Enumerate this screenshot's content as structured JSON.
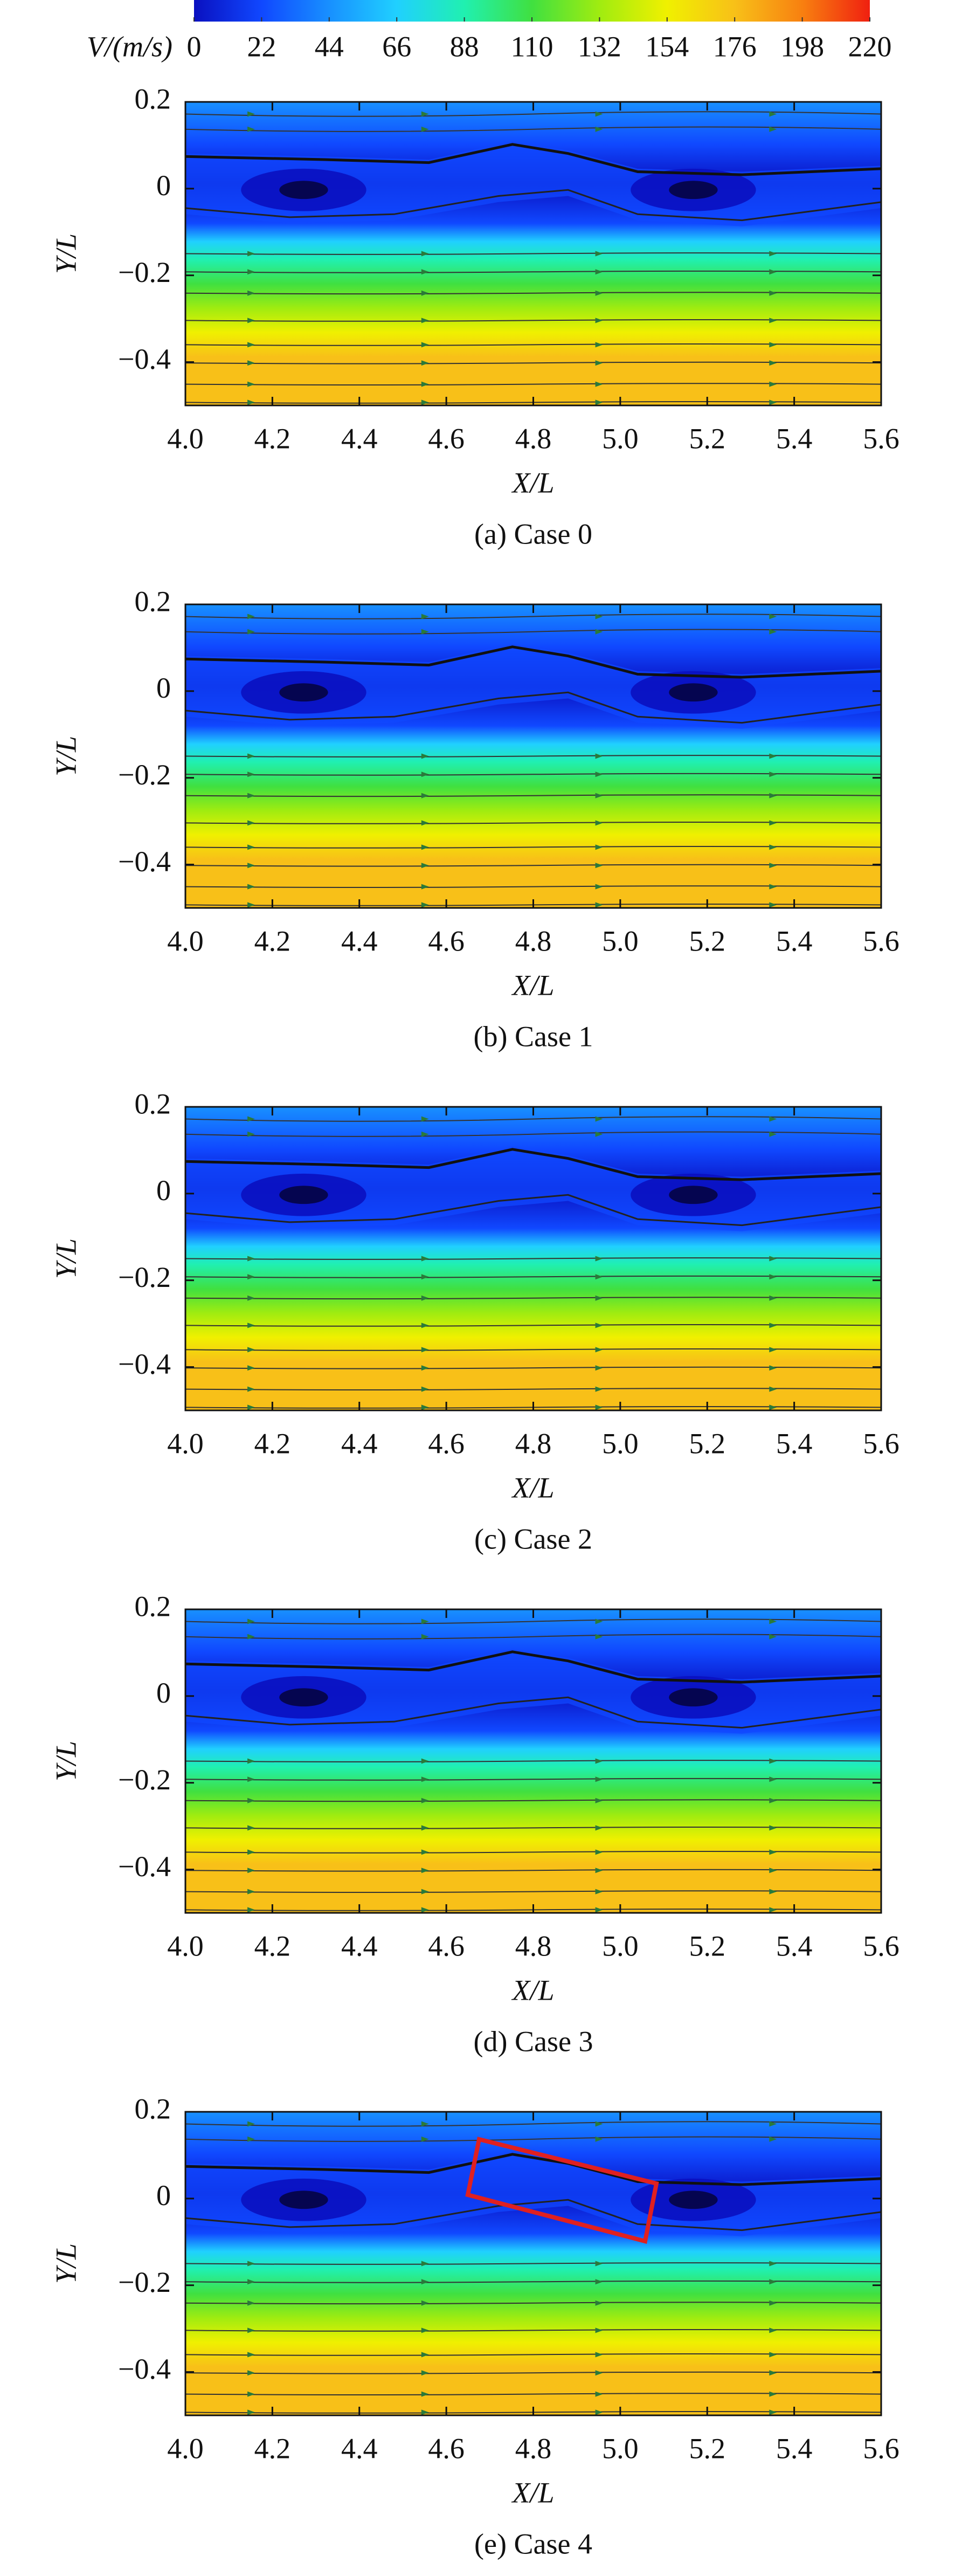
{
  "chart_data": [
    {
      "type": "colorbar",
      "label": "V/(m/s)",
      "lim": [
        0,
        220
      ],
      "ticks": [
        0,
        22,
        44,
        66,
        88,
        110,
        132,
        154,
        176,
        198,
        220
      ],
      "colors": [
        "#0a10c0",
        "#1048ff",
        "#1890ff",
        "#20d0ff",
        "#20f0b0",
        "#40e040",
        "#a0ec10",
        "#f0f000",
        "#f8c018",
        "#f88010",
        "#f02010"
      ]
    },
    {
      "type": "contour",
      "caption": "(a) Case 0",
      "xlabel": "X/L",
      "ylabel": "Y/L",
      "xlim": [
        4.0,
        5.6
      ],
      "xticks": [
        {
          "value": 4.0,
          "label": "4.0"
        },
        4.2,
        4.4,
        4.6,
        4.8,
        {
          "value": 5.0,
          "label": "5.0"
        },
        5.2,
        5.4,
        5.6
      ],
      "ylim": [
        -0.5,
        0.2
      ],
      "yticks": [
        0.2,
        0,
        {
          "value": -0.2,
          "label": "−0.2"
        },
        {
          "value": -0.4,
          "label": "−0.4"
        }
      ]
    },
    {
      "type": "contour",
      "caption": "(b) Case 1",
      "xlabel": "X/L",
      "ylabel": "Y/L",
      "xlim": [
        4.0,
        5.6
      ],
      "xticks": [
        {
          "value": 4.0,
          "label": "4.0"
        },
        4.2,
        4.4,
        4.6,
        4.8,
        {
          "value": 5.0,
          "label": "5.0"
        },
        5.2,
        5.4,
        5.6
      ],
      "ylim": [
        -0.5,
        0.2
      ],
      "yticks": [
        0.2,
        0,
        {
          "value": -0.2,
          "label": "−0.2"
        },
        {
          "value": -0.4,
          "label": "−0.4"
        }
      ]
    },
    {
      "type": "contour",
      "caption": "(c) Case 2",
      "xlabel": "X/L",
      "ylabel": "Y/L",
      "xlim": [
        4.0,
        5.6
      ],
      "xticks": [
        {
          "value": 4.0,
          "label": "4.0"
        },
        4.2,
        4.4,
        4.6,
        4.8,
        {
          "value": 5.0,
          "label": "5.0"
        },
        5.2,
        5.4,
        5.6
      ],
      "ylim": [
        -0.5,
        0.2
      ],
      "yticks": [
        0.2,
        0,
        {
          "value": -0.2,
          "label": "−0.2"
        },
        {
          "value": -0.4,
          "label": "−0.4"
        }
      ]
    },
    {
      "type": "contour",
      "caption": "(d) Case 3",
      "xlabel": "X/L",
      "ylabel": "Y/L",
      "xlim": [
        4.0,
        5.6
      ],
      "xticks": [
        {
          "value": 4.0,
          "label": "4.0"
        },
        4.2,
        4.4,
        4.6,
        4.8,
        {
          "value": 5.0,
          "label": "5.0"
        },
        5.2,
        5.4,
        5.6
      ],
      "ylim": [
        -0.5,
        0.2
      ],
      "yticks": [
        0.2,
        0,
        {
          "value": -0.2,
          "label": "−0.2"
        },
        {
          "value": -0.4,
          "label": "−0.4"
        }
      ]
    },
    {
      "type": "contour",
      "caption": "(e) Case 4",
      "xlabel": "X/L",
      "ylabel": "Y/L",
      "xlim": [
        4.0,
        5.6
      ],
      "xticks": [
        {
          "value": 4.0,
          "label": "4.0"
        },
        4.2,
        4.4,
        4.6,
        4.8,
        {
          "value": 5.0,
          "label": "5.0"
        },
        5.2,
        5.4,
        5.6
      ],
      "ylim": [
        -0.5,
        0.2
      ],
      "yticks": [
        0.2,
        0,
        {
          "value": -0.2,
          "label": "−0.2"
        },
        {
          "value": -0.4,
          "label": "−0.4"
        }
      ]
    }
  ]
}
